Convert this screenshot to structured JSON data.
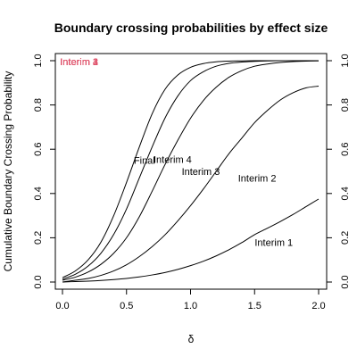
{
  "chart_data": {
    "type": "line",
    "title": "Boundary crossing probabilities by effect size",
    "xlabel": "δ",
    "ylabel": "Cumulative Boundary Crossing Probability",
    "xlim": [
      0,
      2
    ],
    "ylim": [
      0,
      1
    ],
    "xticks": [
      "0.0",
      "0.5",
      "1.0",
      "1.5",
      "2.0"
    ],
    "yticks": [
      "0.0",
      "0.2",
      "0.4",
      "0.6",
      "0.8",
      "1.0"
    ],
    "x": [
      0.0,
      0.1,
      0.2,
      0.3,
      0.4,
      0.5,
      0.6,
      0.7,
      0.8,
      0.9,
      1.0,
      1.1,
      1.2,
      1.3,
      1.4,
      1.5,
      1.6,
      1.7,
      1.8,
      1.9,
      2.0
    ],
    "series": [
      {
        "name": "Interim 1",
        "values": [
          0.0,
          0.002,
          0.004,
          0.007,
          0.011,
          0.016,
          0.023,
          0.032,
          0.043,
          0.057,
          0.074,
          0.094,
          0.118,
          0.146,
          0.178,
          0.214,
          0.243,
          0.273,
          0.305,
          0.34,
          0.375
        ],
        "label_at": [
          1.65,
          0.18
        ]
      },
      {
        "name": "Interim 2",
        "values": [
          0.0,
          0.008,
          0.016,
          0.03,
          0.05,
          0.078,
          0.115,
          0.16,
          0.213,
          0.276,
          0.345,
          0.42,
          0.5,
          0.58,
          0.65,
          0.72,
          0.775,
          0.822,
          0.855,
          0.877,
          0.885
        ],
        "label_at": [
          1.52,
          0.47
        ]
      },
      {
        "name": "Interim 3",
        "values": [
          0.008,
          0.022,
          0.045,
          0.08,
          0.13,
          0.2,
          0.295,
          0.41,
          0.53,
          0.64,
          0.74,
          0.82,
          0.88,
          0.925,
          0.955,
          0.975,
          0.985,
          0.992,
          0.996,
          0.998,
          0.999
        ],
        "label_at": [
          1.08,
          0.5
        ]
      },
      {
        "name": "Interim 4",
        "values": [
          0.013,
          0.035,
          0.072,
          0.13,
          0.215,
          0.33,
          0.47,
          0.61,
          0.74,
          0.84,
          0.91,
          0.95,
          0.975,
          0.988,
          0.994,
          0.997,
          0.999,
          1.0,
          1.0,
          1.0,
          1.0
        ],
        "label_at": [
          0.86,
          0.555
        ]
      },
      {
        "name": "Final",
        "values": [
          0.02,
          0.05,
          0.1,
          0.18,
          0.3,
          0.45,
          0.61,
          0.76,
          0.87,
          0.935,
          0.97,
          0.987,
          0.995,
          0.998,
          0.999,
          1.0,
          1.0,
          1.0,
          1.0,
          1.0,
          1.0
        ],
        "label_at": [
          0.64,
          0.55
        ]
      }
    ],
    "top_labels": {
      "text": [
        "Interim 1",
        "Interim 2",
        "Interim 3",
        "Interim 4"
      ],
      "color": "#DF536B",
      "at": [
        0.13,
        0.995
      ]
    },
    "grid": false,
    "legend": "none"
  }
}
